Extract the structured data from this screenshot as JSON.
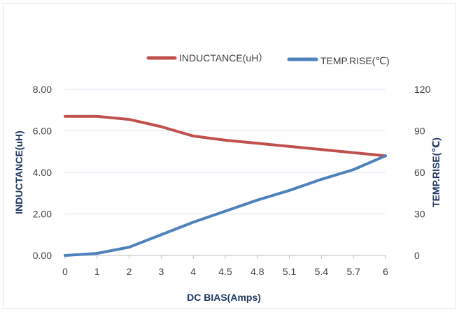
{
  "chart_data": {
    "type": "line",
    "categories": [
      "0",
      "1",
      "2",
      "3",
      "4",
      "4.5",
      "4.8",
      "5.1",
      "5.4",
      "5.7",
      "6"
    ],
    "xlabel": "DC BIAS(Amps)",
    "ylabel": "INDUCTANCE(uH)",
    "y2label": "TEMP.RISE(℃)",
    "ylim": [
      0,
      8
    ],
    "y2lim": [
      0,
      120
    ],
    "yticks": [
      "0.00",
      "2.00",
      "4.00",
      "6.00",
      "8.00"
    ],
    "y2ticks": [
      "0",
      "30",
      "60",
      "90",
      "120"
    ],
    "grid": true,
    "legend": "top",
    "series": [
      {
        "name": "INDUCTANCE(uH）",
        "axis": "left",
        "color": "#c0504d",
        "values": [
          6.7,
          6.7,
          6.55,
          6.2,
          5.75,
          5.55,
          5.4,
          5.25,
          5.1,
          4.95,
          4.8
        ]
      },
      {
        "name": "TEMP.RISE(℃)",
        "axis": "right",
        "color": "#4f81bd",
        "values": [
          0,
          1.5,
          6,
          15,
          24,
          32,
          40,
          47,
          55,
          62,
          72
        ]
      }
    ]
  }
}
